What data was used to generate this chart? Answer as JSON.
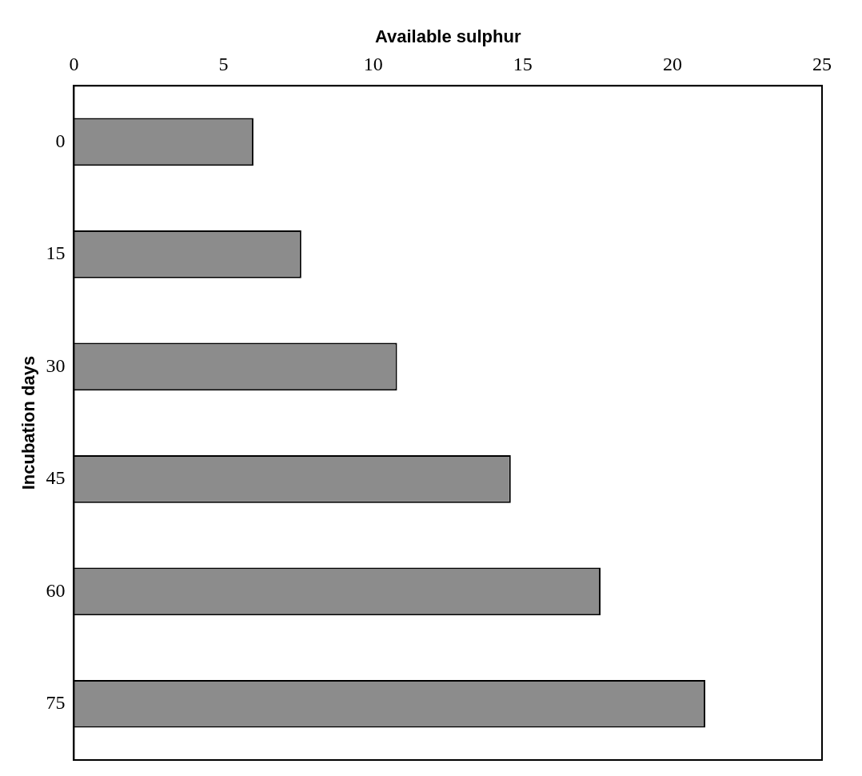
{
  "chart_data": {
    "type": "bar",
    "orientation": "horizontal",
    "xlabel": "Available sulphur",
    "ylabel": "Incubation days",
    "categories": [
      "0",
      "15",
      "30",
      "45",
      "60",
      "75"
    ],
    "values": [
      6,
      7.6,
      10.8,
      14.6,
      17.6,
      21.1
    ],
    "color": "#8c8c8c",
    "xlim": [
      0,
      25
    ],
    "xticks": [
      0,
      5,
      10,
      15,
      20,
      25
    ],
    "grid": false,
    "legend": false
  }
}
